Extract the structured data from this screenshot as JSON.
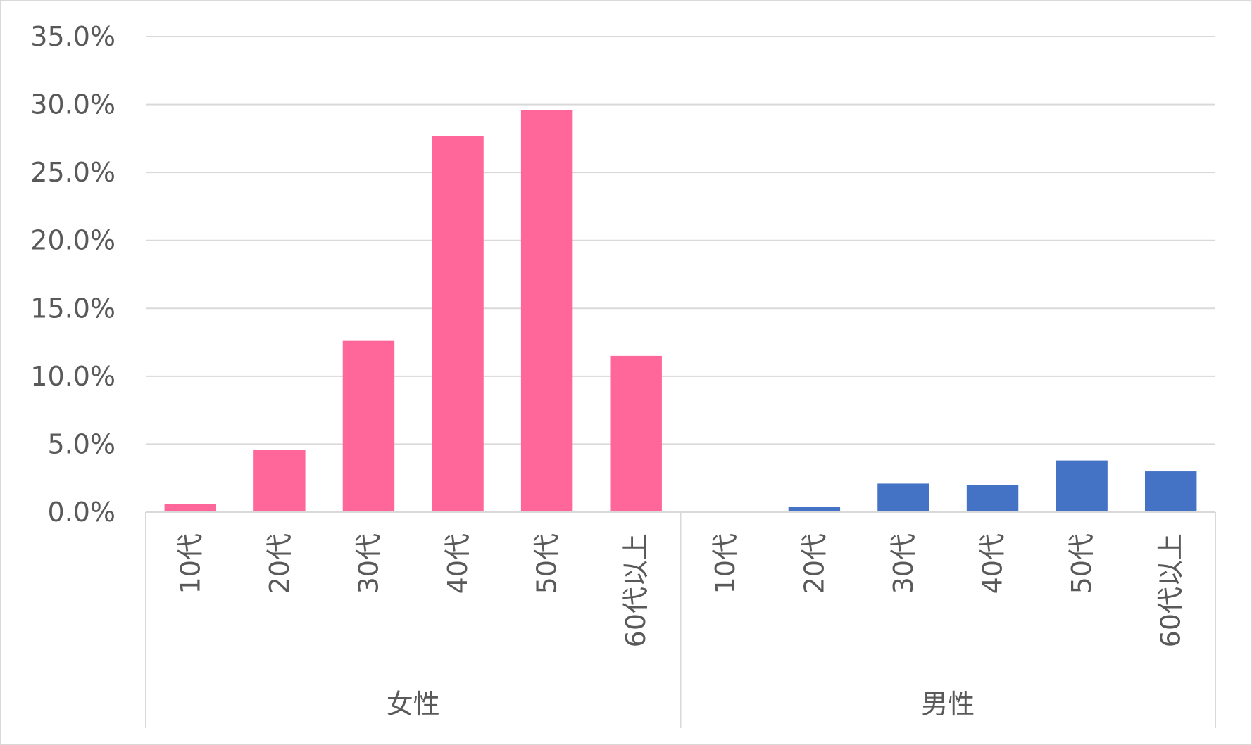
{
  "chart_data": {
    "type": "bar",
    "y_axis": {
      "ticks": [
        "0.0%",
        "5.0%",
        "10.0%",
        "15.0%",
        "20.0%",
        "25.0%",
        "30.0%",
        "35.0%"
      ],
      "ylim": [
        0,
        35
      ],
      "unit": "%"
    },
    "grid": true,
    "legend": "none",
    "groups": [
      {
        "label": "女性",
        "color": "#ff6699",
        "categories": [
          "10代",
          "20代",
          "30代",
          "40代",
          "50代",
          "60代以上"
        ],
        "values": [
          0.6,
          4.6,
          12.6,
          27.7,
          29.6,
          11.5
        ]
      },
      {
        "label": "男性",
        "color": "#4472c4",
        "categories": [
          "10代",
          "20代",
          "30代",
          "40代",
          "50代",
          "60代以上"
        ],
        "values": [
          0.1,
          0.4,
          2.1,
          2.0,
          3.8,
          3.0
        ]
      }
    ]
  }
}
